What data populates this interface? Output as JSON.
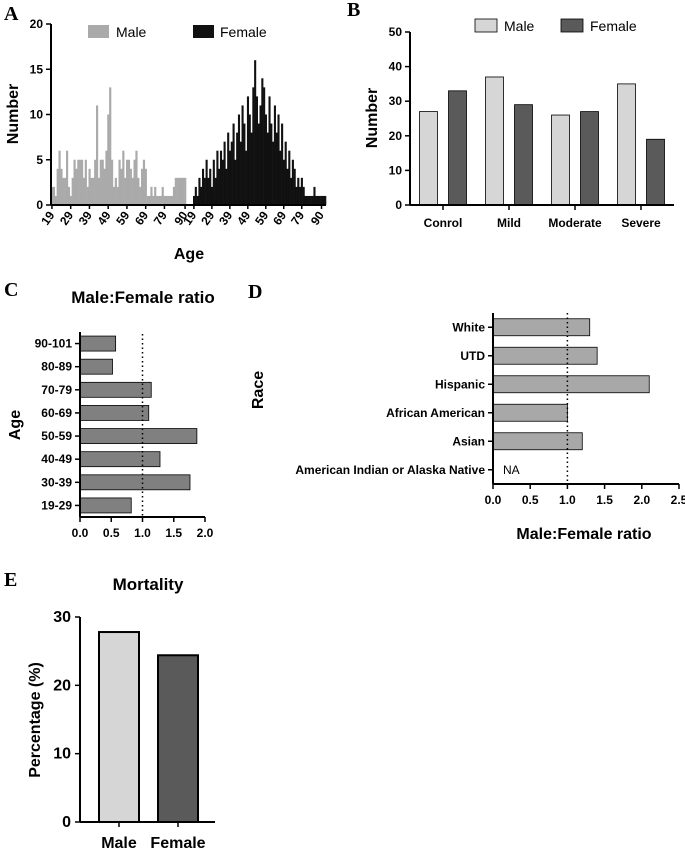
{
  "chart_data": [
    {
      "panel": "A",
      "type": "bar",
      "title": "",
      "xlabel": "Age",
      "ylabel": "Number",
      "ylim": [
        0,
        20
      ],
      "yticks": [
        "0",
        "5",
        "10",
        "15",
        "20"
      ],
      "grid": false,
      "legend_position": "top",
      "series": [
        {
          "name": "Male",
          "color": "#aaaaaa",
          "start_age": 19,
          "values": [
            2,
            2,
            1,
            4,
            6,
            4,
            3,
            3,
            6,
            2,
            1,
            3,
            5,
            4,
            5,
            5,
            5,
            3,
            5,
            2,
            4,
            3,
            3,
            5,
            11,
            3,
            5,
            5,
            4,
            6,
            10,
            13,
            5,
            2,
            3,
            2,
            5,
            4,
            6,
            3,
            5,
            5,
            4,
            3,
            5,
            6,
            3,
            2,
            4,
            5,
            4,
            1,
            1,
            2,
            1,
            2,
            1,
            1,
            1,
            2,
            1,
            1,
            1,
            1,
            1,
            2,
            3,
            3,
            3,
            3,
            3,
            3
          ]
        },
        {
          "name": "Female",
          "color": "#111111",
          "start_age": 19,
          "values": [
            1,
            2,
            1,
            3,
            2,
            4,
            3,
            5,
            3,
            4,
            2,
            5,
            3,
            6,
            4,
            6,
            5,
            7,
            4,
            8,
            6,
            7,
            9,
            5,
            8,
            10,
            7,
            11,
            9,
            6,
            12,
            10,
            8,
            13,
            16,
            12,
            9,
            11,
            14,
            13,
            10,
            8,
            12,
            9,
            7,
            11,
            8,
            10,
            6,
            9,
            5,
            7,
            4,
            6,
            3,
            5,
            4,
            2,
            3,
            2,
            3,
            2,
            1,
            1,
            1,
            1,
            1,
            2,
            1,
            1,
            1,
            1,
            1,
            1
          ]
        }
      ],
      "xticks": [
        "19",
        "29",
        "39",
        "49",
        "59",
        "69",
        "79",
        "90",
        "19",
        "29",
        "39",
        "49",
        "59",
        "69",
        "79",
        "90"
      ]
    },
    {
      "panel": "B",
      "type": "bar",
      "title": "",
      "xlabel": "",
      "ylabel": "Number",
      "ylim": [
        0,
        50
      ],
      "yticks": [
        "0",
        "10",
        "20",
        "30",
        "40",
        "50"
      ],
      "legend_position": "top",
      "categories": [
        "Conrol",
        "Mild",
        "Moderate",
        "Severe"
      ],
      "series": [
        {
          "name": "Male",
          "color": "#d6d6d6",
          "values": [
            27,
            37,
            26,
            35
          ]
        },
        {
          "name": "Female",
          "color": "#5a5a5a",
          "values": [
            33,
            29,
            27,
            19
          ]
        }
      ]
    },
    {
      "panel": "C",
      "type": "bar",
      "orientation": "horizontal",
      "title": "Male:Female ratio",
      "xlabel": "",
      "ylabel": "Age",
      "xlim": [
        0,
        2
      ],
      "xticks": [
        "0.0",
        "0.5",
        "1.0",
        "1.5",
        "2.0"
      ],
      "reference_line": 1.0,
      "categories": [
        "90-101",
        "80-89",
        "70-79",
        "60-69",
        "50-59",
        "40-49",
        "30-39",
        "19-29"
      ],
      "values": [
        0.57,
        0.52,
        1.14,
        1.1,
        1.87,
        1.28,
        1.76,
        0.82
      ],
      "color": "#808080"
    },
    {
      "panel": "D",
      "type": "bar",
      "orientation": "horizontal",
      "title": "",
      "xlabel": "Male:Female ratio",
      "ylabel": "Race",
      "xlim": [
        0,
        2.5
      ],
      "xticks": [
        "0.0",
        "0.5",
        "1.0",
        "1.5",
        "2.0",
        "2.5"
      ],
      "reference_line": 1.0,
      "categories": [
        "White",
        "UTD",
        "Hispanic",
        "African American",
        "Asian",
        "American Indian or Alaska Native"
      ],
      "values": [
        1.3,
        1.4,
        2.1,
        1.0,
        1.2,
        null
      ],
      "bar_text": [
        "",
        "",
        "",
        "",
        "",
        "NA"
      ],
      "color": "#a8a8a8"
    },
    {
      "panel": "E",
      "type": "bar",
      "title": "Mortality",
      "xlabel": "",
      "ylabel": "Percentage (%)",
      "ylim": [
        0,
        30
      ],
      "yticks": [
        "0",
        "10",
        "20",
        "30"
      ],
      "categories": [
        "Male",
        "Female"
      ],
      "values": [
        27.8,
        24.4
      ],
      "colors": [
        "#d6d6d6",
        "#5a5a5a"
      ]
    }
  ]
}
